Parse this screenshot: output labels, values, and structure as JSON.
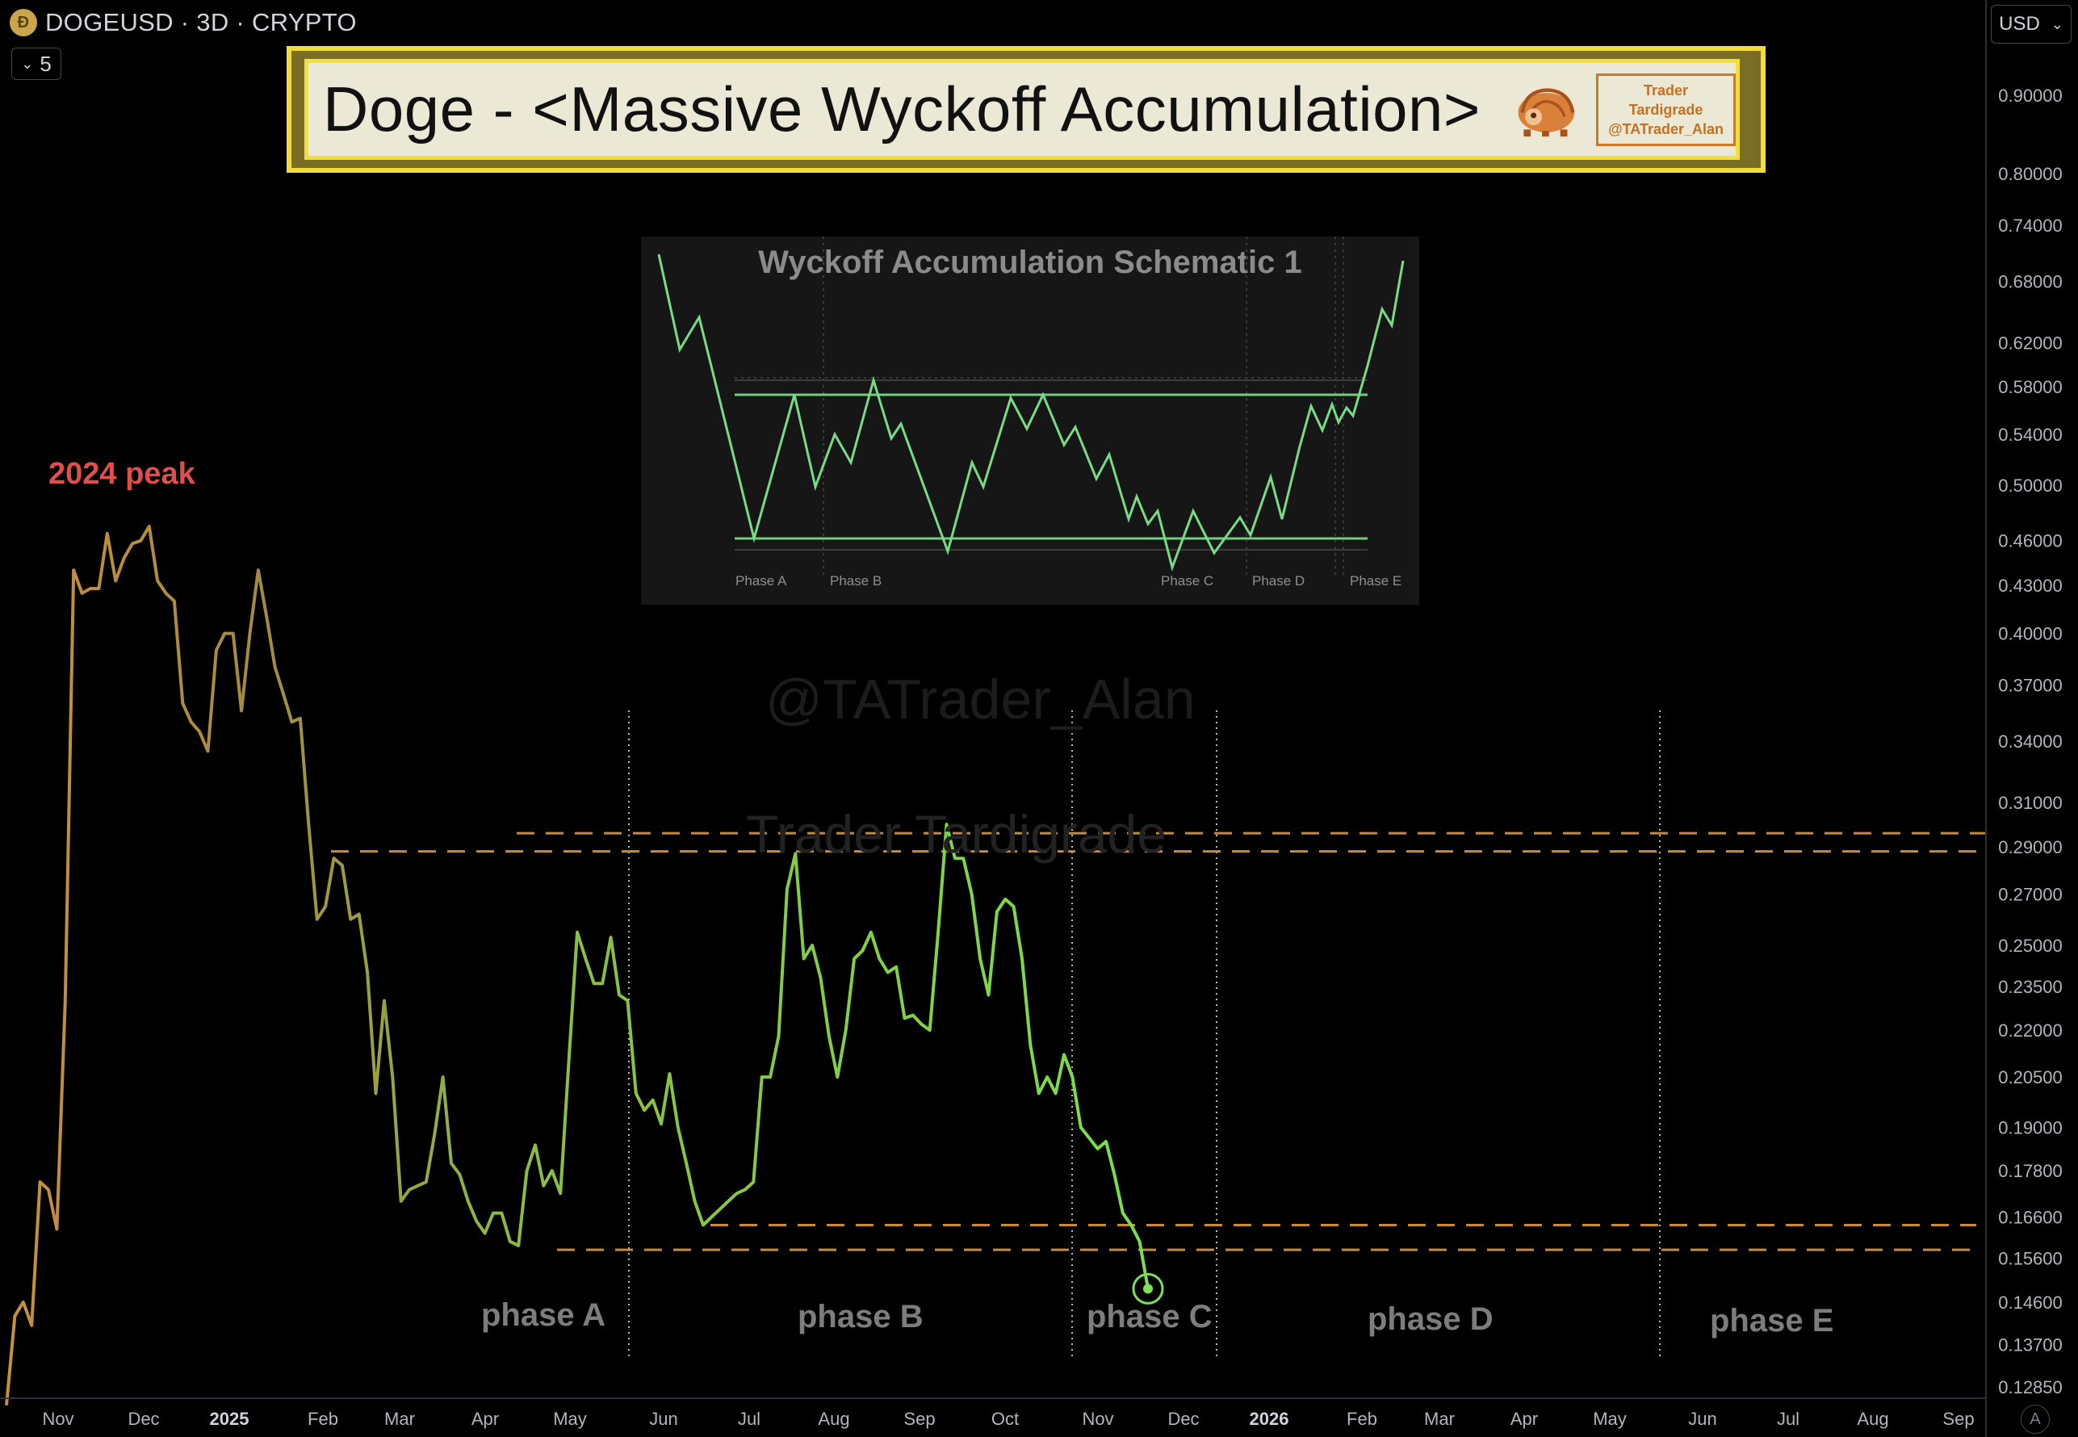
{
  "header": {
    "coin_icon": "doge-coin-icon",
    "symbol_line": "DOGEUSD · 3D · CRYPTO",
    "interval_value": "5",
    "currency": "USD",
    "auto_button": "A"
  },
  "title_box": {
    "title": "Doge - <Massive Wyckoff Accumulation>",
    "brand_line1": "Trader Tardigrade",
    "brand_line2": "@TATrader_Alan",
    "mascot_icon": "tardigrade-mascot-icon"
  },
  "schematic": {
    "title": "Wyckoff Accumulation Schematic 1",
    "phase_labels": [
      "Phase A",
      "Phase B",
      "Phase C",
      "Phase D",
      "Phase E"
    ]
  },
  "watermarks": [
    "@TATrader_Alan",
    "Trader Tardigrade"
  ],
  "annotations": {
    "peak_label": "2024 peak",
    "phase_labels": [
      "phase A",
      "phase B",
      "phase C",
      "phase D",
      "phase E"
    ]
  },
  "chart_data": {
    "type": "line",
    "scale": "log",
    "ylim": [
      0.125,
      1.0
    ],
    "y_ticks": [
      "0.90000",
      "0.80000",
      "0.74000",
      "0.68000",
      "0.62000",
      "0.58000",
      "0.54000",
      "0.50000",
      "0.46000",
      "0.43000",
      "0.40000",
      "0.37000",
      "0.34000",
      "0.31000",
      "0.29000",
      "0.27000",
      "0.25000",
      "0.23500",
      "0.22000",
      "0.20500",
      "0.19000",
      "0.17800",
      "0.16600",
      "0.15600",
      "0.14600",
      "0.13700",
      "0.12850"
    ],
    "x_ticks": [
      "Nov",
      "Dec",
      "2025",
      "Feb",
      "Mar",
      "Apr",
      "May",
      "Jun",
      "Jul",
      "Aug",
      "Sep",
      "Oct",
      "Nov",
      "Dec",
      "2026",
      "Feb",
      "Mar",
      "Apr",
      "May",
      "Jun",
      "Jul",
      "Aug",
      "Sep"
    ],
    "resistance_levels": [
      0.296,
      0.288
    ],
    "support_levels": [
      0.164,
      0.158
    ],
    "final_point": 0.149,
    "price": [
      0.125,
      0.143,
      0.146,
      0.141,
      0.175,
      0.173,
      0.163,
      0.23,
      0.44,
      0.425,
      0.428,
      0.428,
      0.465,
      0.433,
      0.448,
      0.458,
      0.46,
      0.47,
      0.433,
      0.425,
      0.42,
      0.36,
      0.35,
      0.345,
      0.335,
      0.39,
      0.4,
      0.4,
      0.356,
      0.4,
      0.44,
      0.41,
      0.38,
      0.365,
      0.35,
      0.352,
      0.3,
      0.26,
      0.265,
      0.285,
      0.282,
      0.26,
      0.262,
      0.24,
      0.2,
      0.23,
      0.205,
      0.17,
      0.173,
      0.174,
      0.175,
      0.188,
      0.205,
      0.18,
      0.177,
      0.17,
      0.165,
      0.162,
      0.167,
      0.167,
      0.16,
      0.159,
      0.178,
      0.185,
      0.174,
      0.178,
      0.172,
      0.21,
      0.255,
      0.245,
      0.236,
      0.236,
      0.253,
      0.232,
      0.23,
      0.2,
      0.195,
      0.198,
      0.191,
      0.206,
      0.19,
      0.18,
      0.17,
      0.164,
      0.166,
      0.168,
      0.17,
      0.172,
      0.173,
      0.175,
      0.205,
      0.205,
      0.218,
      0.272,
      0.287,
      0.245,
      0.25,
      0.238,
      0.218,
      0.205,
      0.22,
      0.245,
      0.248,
      0.255,
      0.245,
      0.24,
      0.242,
      0.224,
      0.225,
      0.222,
      0.22,
      0.255,
      0.3,
      0.285,
      0.285,
      0.27,
      0.245,
      0.232,
      0.263,
      0.268,
      0.265,
      0.245,
      0.215,
      0.2,
      0.205,
      0.2,
      0.212,
      0.205,
      0.19,
      0.187,
      0.184,
      0.186,
      0.177,
      0.167,
      0.164,
      0.16,
      0.149
    ]
  }
}
